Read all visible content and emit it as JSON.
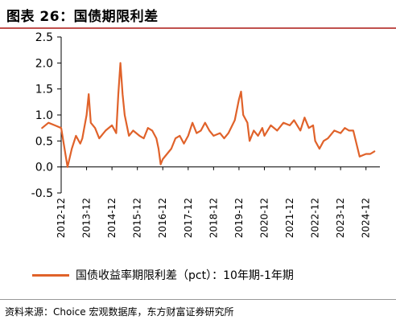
{
  "title": "图表 26：国债期限利差",
  "source": "资料来源：Choice 宏观数据库，东方财富证券研究所",
  "colors": {
    "series": "#e0622a",
    "accent": "#c0504d",
    "axis": "#000000"
  },
  "chart_data": {
    "type": "line",
    "title": "图表 26：国债期限利差",
    "xlabel": "",
    "ylabel": "",
    "ylim": [
      -0.5,
      2.5
    ],
    "y_ticks": [
      -0.5,
      0.0,
      0.5,
      1.0,
      1.5,
      2.0,
      2.5
    ],
    "y_tick_labels": [
      "-0.5",
      "0.0",
      "0.5",
      "1.0",
      "1.5",
      "2.0",
      "2.5"
    ],
    "x_tick_labels": [
      "2012-12",
      "2013-12",
      "2014-12",
      "2015-12",
      "2016-12",
      "2017-12",
      "2018-12",
      "2019-12",
      "2020-12",
      "2021-12",
      "2022-12",
      "2023-12",
      "2024-12"
    ],
    "grid": false,
    "legend_position": "bottom",
    "series": [
      {
        "name": "国债收益率期限利差（pct）：10年期-1年期",
        "x": [
          "2012-03",
          "2012-06",
          "2012-09",
          "2012-12",
          "2013-03",
          "2013-05",
          "2013-07",
          "2013-09",
          "2013-10",
          "2013-12",
          "2014-01",
          "2014-02",
          "2014-04",
          "2014-06",
          "2014-09",
          "2014-12",
          "2015-02",
          "2015-03",
          "2015-04",
          "2015-05",
          "2015-06",
          "2015-08",
          "2015-10",
          "2016-01",
          "2016-03",
          "2016-05",
          "2016-07",
          "2016-09",
          "2016-10",
          "2016-11",
          "2016-12",
          "2017-02",
          "2017-04",
          "2017-06",
          "2017-08",
          "2017-10",
          "2017-12",
          "2018-02",
          "2018-04",
          "2018-06",
          "2018-08",
          "2018-10",
          "2018-12",
          "2019-03",
          "2019-05",
          "2019-07",
          "2019-10",
          "2019-12",
          "2020-01",
          "2020-02",
          "2020-04",
          "2020-05",
          "2020-07",
          "2020-09",
          "2020-11",
          "2020-12",
          "2021-03",
          "2021-06",
          "2021-09",
          "2021-12",
          "2022-02",
          "2022-05",
          "2022-07",
          "2022-09",
          "2022-11",
          "2022-12",
          "2023-02",
          "2023-04",
          "2023-06",
          "2023-09",
          "2023-12",
          "2024-02",
          "2024-04",
          "2024-06",
          "2024-09",
          "2024-12",
          "2025-02",
          "2025-04"
        ],
        "values": [
          0.75,
          0.85,
          0.8,
          0.75,
          0.0,
          0.35,
          0.6,
          0.45,
          0.55,
          1.0,
          1.4,
          0.85,
          0.75,
          0.55,
          0.7,
          0.8,
          0.65,
          1.4,
          2.0,
          1.4,
          1.0,
          0.6,
          0.7,
          0.6,
          0.55,
          0.75,
          0.7,
          0.55,
          0.35,
          0.05,
          0.15,
          0.25,
          0.35,
          0.55,
          0.6,
          0.45,
          0.6,
          0.85,
          0.65,
          0.7,
          0.85,
          0.7,
          0.6,
          0.65,
          0.55,
          0.65,
          0.9,
          1.3,
          1.45,
          1.0,
          0.85,
          0.5,
          0.7,
          0.6,
          0.75,
          0.6,
          0.8,
          0.7,
          0.85,
          0.8,
          0.9,
          0.7,
          0.95,
          0.75,
          0.8,
          0.5,
          0.35,
          0.5,
          0.55,
          0.7,
          0.65,
          0.75,
          0.7,
          0.7,
          0.2,
          0.25,
          0.25,
          0.3
        ]
      }
    ]
  }
}
